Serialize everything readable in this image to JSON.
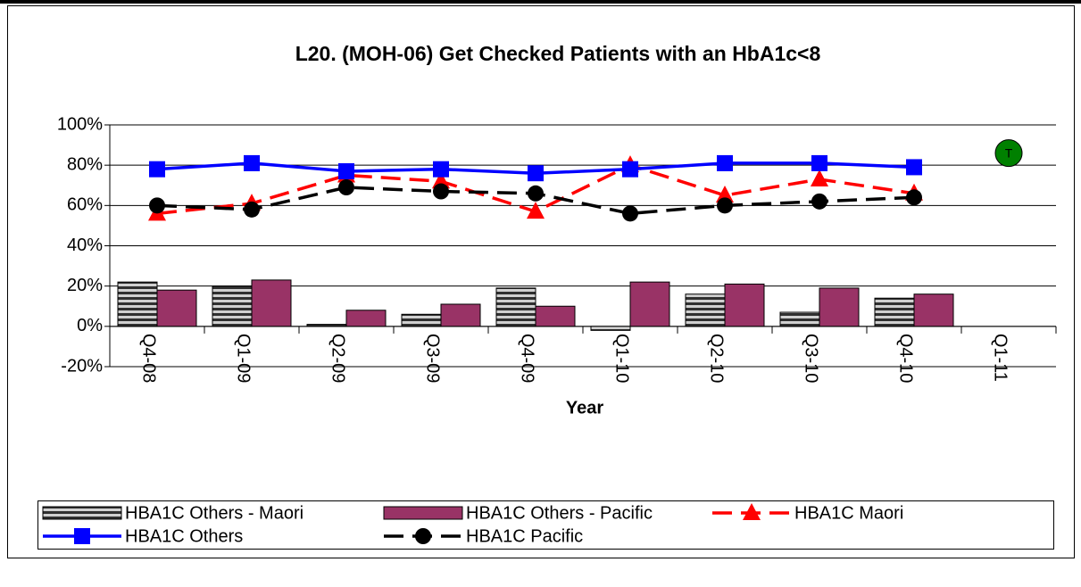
{
  "chart_data": {
    "type": "bar_line",
    "title": "L20. (MOH-06)  Get Checked Patients with an HbA1c<8",
    "x_label": "Year",
    "categories": [
      "Q4-08",
      "Q1-09",
      "Q2-09",
      "Q3-09",
      "Q4-09",
      "Q1-10",
      "Q2-10",
      "Q3-10",
      "Q4-10",
      "Q1-11"
    ],
    "ylim": [
      -20,
      100
    ],
    "yticks": [
      {
        "value": -20,
        "label": "-20%"
      },
      {
        "value": 0,
        "label": "0%"
      },
      {
        "value": 20,
        "label": "20%"
      },
      {
        "value": 40,
        "label": "40%"
      },
      {
        "value": 60,
        "label": "60%"
      },
      {
        "value": 80,
        "label": "80%"
      },
      {
        "value": 100,
        "label": "100%"
      }
    ],
    "grid": true,
    "legend": "bottom",
    "series": [
      {
        "name": "HBA1C Others - Maori",
        "type": "bar",
        "color": "#808080",
        "pattern": "striped",
        "values": [
          22,
          20,
          1,
          6,
          19,
          -2,
          16,
          7,
          14,
          null
        ]
      },
      {
        "name": "HBA1C Others - Pacific",
        "type": "bar",
        "color": "#993366",
        "values": [
          18,
          23,
          8,
          11,
          10,
          22,
          21,
          19,
          16,
          null
        ]
      },
      {
        "name": "HBA1C Maori",
        "type": "line",
        "color": "#ff0000",
        "dashed": true,
        "marker": "triangle",
        "values": [
          56,
          61,
          75,
          72,
          57,
          80,
          65,
          73,
          66,
          null
        ]
      },
      {
        "name": "HBA1C Others",
        "type": "line",
        "color": "#0000ff",
        "dashed": false,
        "marker": "square",
        "values": [
          78,
          81,
          77,
          78,
          76,
          78,
          81,
          81,
          79,
          null
        ]
      },
      {
        "name": "HBA1C Pacific",
        "type": "line",
        "color": "#000000",
        "dashed": true,
        "marker": "circle",
        "values": [
          60,
          58,
          69,
          67,
          66,
          56,
          60,
          62,
          64,
          null
        ]
      }
    ],
    "annotations": [
      {
        "label": "T",
        "category": 9,
        "value": 86,
        "color": "#008000"
      }
    ]
  }
}
